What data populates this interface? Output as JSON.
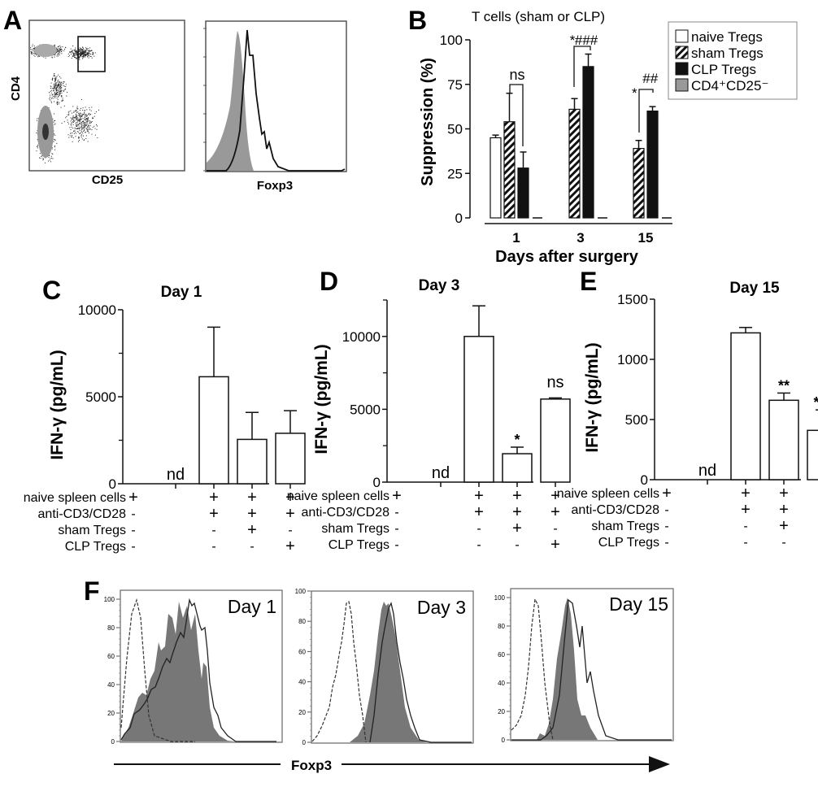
{
  "figure": {
    "panels": [
      "A",
      "B",
      "C",
      "D",
      "E",
      "F"
    ]
  },
  "panel_a": {
    "letter": "A",
    "dotplot": {
      "xlabel": "CD25",
      "ylabel": "CD4"
    },
    "histogram": {
      "xlabel": "Foxp3"
    }
  },
  "chart_data": [
    {
      "id": "B",
      "type": "bar",
      "letter": "B",
      "title": "T cells (sham or CLP)",
      "xlabel": "Days after surgery",
      "ylabel": "Suppression (%)",
      "categories": [
        "1",
        "3",
        "15"
      ],
      "ylim": [
        0,
        100
      ],
      "yticks": [
        "0",
        "25",
        "50",
        "75",
        "100"
      ],
      "series": [
        {
          "name": "naive Tregs",
          "fill": "white",
          "values": [
            45,
            null,
            null
          ],
          "errors": [
            1.5,
            null,
            null
          ]
        },
        {
          "name": "sham Tregs",
          "fill": "hatch",
          "values": [
            54,
            61,
            39
          ],
          "errors": [
            16,
            6,
            4.5
          ]
        },
        {
          "name": "CLP Tregs",
          "fill": "black",
          "values": [
            28,
            85,
            60
          ],
          "errors": [
            9,
            7,
            2.5
          ]
        },
        {
          "name": "CD4⁺CD25⁻",
          "fill": "gray",
          "values": [
            0,
            0,
            0
          ],
          "errors": [
            0,
            0,
            0
          ]
        }
      ],
      "legend": {
        "position": "top-right",
        "items": [
          "naive Tregs",
          "sham Tregs",
          "CLP Tregs",
          "CD4⁺CD25⁻"
        ]
      },
      "annotations": [
        {
          "category": "1",
          "text": "ns"
        },
        {
          "category": "3",
          "text": "*###"
        },
        {
          "category": "15",
          "text": "*##"
        }
      ]
    },
    {
      "id": "C",
      "type": "bar",
      "letter": "C",
      "title": "Day 1",
      "ylabel": "IFN-γ (pg/mL)",
      "ylim": [
        0,
        10000
      ],
      "yticks": [
        "0",
        "5000",
        "10000"
      ],
      "minor_ticks": [
        2500,
        7500
      ],
      "values": [
        0,
        6150,
        2550,
        2900
      ],
      "errors": [
        0,
        2850,
        1550,
        1300
      ],
      "bar_labels": [
        "nd",
        "",
        "",
        ""
      ]
    },
    {
      "id": "D",
      "type": "bar",
      "letter": "D",
      "title": "Day 3",
      "ylabel": "IFN-γ (pg/mL)",
      "ylim": [
        0,
        12500
      ],
      "yticks": [
        "0",
        "5000",
        "10000"
      ],
      "minor_ticks": [
        2500,
        7500,
        12500
      ],
      "values": [
        0,
        10000,
        1950,
        5700
      ],
      "errors": [
        0,
        2100,
        450,
        80
      ],
      "bar_labels": [
        "nd",
        "",
        "*",
        "ns"
      ]
    },
    {
      "id": "E",
      "type": "bar",
      "letter": "E",
      "title": "Day 15",
      "ylabel": "IFN-γ (pg/mL)",
      "ylim": [
        0,
        1500
      ],
      "yticks": [
        "0",
        "500",
        "1000",
        "1500"
      ],
      "minor_ticks": [],
      "values": [
        0,
        1220,
        660,
        410
      ],
      "errors": [
        0,
        45,
        60,
        170
      ],
      "bar_labels": [
        "nd",
        "",
        "**",
        "***"
      ]
    },
    {
      "id": "F",
      "type": "line",
      "letter": "F",
      "xlabel": "Foxp3",
      "yticks": [
        "0",
        "20",
        "40",
        "60",
        "80",
        "100"
      ],
      "ylim": [
        0,
        100
      ],
      "histograms": [
        {
          "title": "Day 1"
        },
        {
          "title": "Day 3"
        },
        {
          "title": "Day 15"
        }
      ]
    }
  ],
  "condition_table": {
    "rows": [
      {
        "label": "naive spleen cells",
        "values": [
          "+",
          "+",
          "+",
          "+"
        ]
      },
      {
        "label": "anti-CD3/CD28",
        "values": [
          "-",
          "+",
          "+",
          "+"
        ]
      },
      {
        "label": "sham Tregs",
        "values": [
          "-",
          "-",
          "+",
          "-"
        ]
      },
      {
        "label": "CLP Tregs",
        "values": [
          "-",
          "-",
          "-",
          "+"
        ]
      }
    ]
  }
}
